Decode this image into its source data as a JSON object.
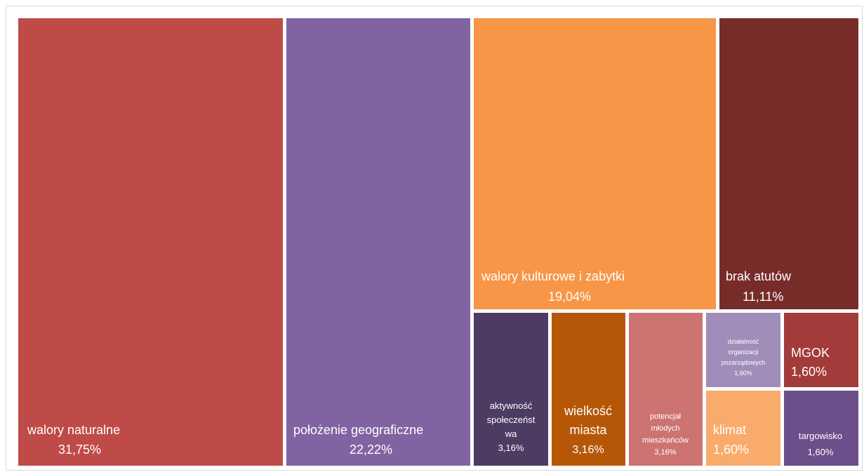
{
  "chart_data": {
    "type": "treemap",
    "items": [
      {
        "label": "walory naturalne",
        "value": 31.75,
        "value_label": "31,75%",
        "color": "#BE4B48"
      },
      {
        "label": "położenie geograficzne",
        "value": 22.22,
        "value_label": "22,22%",
        "color": "#8064A2"
      },
      {
        "label": "walory kulturowe i zabytki",
        "value": 19.04,
        "value_label": "19,04%",
        "color": "#F79646"
      },
      {
        "label": "brak atutów",
        "value": 11.11,
        "value_label": "11,11%",
        "color": "#772C2A"
      },
      {
        "label": "aktywność społeczeństwa",
        "value": 3.16,
        "value_label": "3,16%",
        "color": "#4D3B62"
      },
      {
        "label": "wielkość miasta",
        "value": 3.16,
        "value_label": "3,16%",
        "color": "#B65708"
      },
      {
        "label": "potencjał młodych mieszkańców",
        "value": 3.16,
        "value_label": "3,16%",
        "color": "#CD7371"
      },
      {
        "label": "działalność organizacji pozarządowych",
        "value": 1.6,
        "value_label": "1,60%",
        "color": "#A18DBA"
      },
      {
        "label": "MGOK",
        "value": 1.6,
        "value_label": "1,60%",
        "color": "#A23B3A"
      },
      {
        "label": "klimat",
        "value": 1.6,
        "value_label": "1,60%",
        "color": "#F9AB6B"
      },
      {
        "label": "targowisko",
        "value": 1.6,
        "value_label": "1,60%",
        "color": "#6B4F8A"
      }
    ],
    "text_lines": [
      [
        "walory naturalne",
        "31,75%"
      ],
      [
        "położenie geograficzne",
        "22,22%"
      ],
      [
        "walory kulturowe i zabytki",
        "19,04%"
      ],
      [
        "brak atutów",
        "11,11%"
      ],
      [
        "aktywność",
        "społeczeńst",
        "wa",
        "3,16%"
      ],
      [
        "wielkość",
        "miasta",
        "3,16%"
      ],
      [
        "potencjał",
        "młodych",
        "mieszkańców",
        "3,16%"
      ],
      [
        "działalność",
        "organizacji",
        "pozarządowych",
        "1,60%"
      ],
      [
        "MGOK",
        "1,60%"
      ],
      [
        "klimat",
        "1,60%"
      ],
      [
        "targowisko",
        "1,60%"
      ]
    ]
  }
}
